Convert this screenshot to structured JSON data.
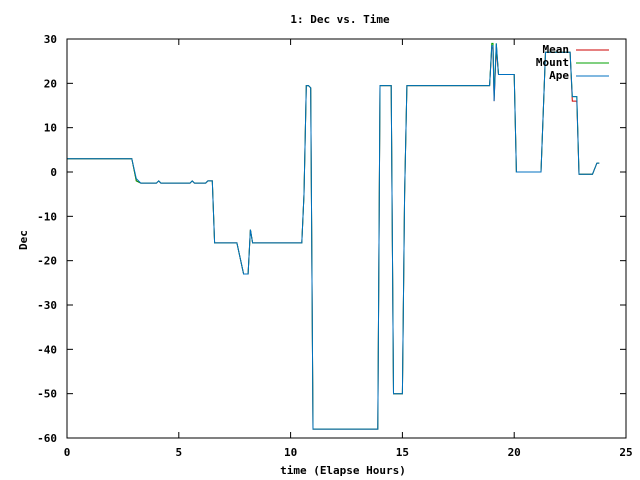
{
  "chart_data": {
    "type": "line",
    "title": "1: Dec vs. Time",
    "xlabel": "time (Elapse Hours)",
    "ylabel": "Dec",
    "xlim": [
      0,
      25
    ],
    "ylim": [
      -60,
      30
    ],
    "xticks": [
      0,
      5,
      10,
      15,
      20,
      25
    ],
    "yticks": [
      -60,
      -50,
      -40,
      -30,
      -20,
      -10,
      0,
      10,
      20,
      30
    ],
    "grid": false,
    "legend": "top-right",
    "series": [
      {
        "name": "Mean",
        "color": "#cc0000",
        "x": [
          0,
          2.6,
          2.9,
          3.1,
          3.3,
          4.0,
          4.1,
          4.2,
          5.5,
          5.6,
          5.7,
          6.2,
          6.3,
          6.4,
          6.5,
          6.6,
          7.0,
          7.6,
          7.9,
          8.1,
          8.2,
          8.3,
          8.4,
          9.0,
          10.0,
          10.5,
          10.6,
          10.7,
          10.8,
          10.9,
          11.0,
          13.2,
          13.9,
          14.0,
          14.5,
          14.6,
          14.7,
          14.8,
          15.0,
          15.1,
          15.2,
          15.3,
          16.0,
          18.0,
          18.9,
          19.0,
          19.05,
          19.1,
          19.2,
          19.3,
          19.4,
          20.0,
          20.1,
          20.2,
          21.1,
          21.2,
          21.4,
          22.0,
          22.5,
          22.6,
          22.8,
          22.9,
          23.0,
          23.5,
          23.7,
          23.8
        ],
        "y": [
          3,
          3,
          3,
          -2,
          -2.5,
          -2.5,
          -2,
          -2.5,
          -2.5,
          -2,
          -2.5,
          -2.5,
          -2,
          -2,
          -2,
          -16,
          -16,
          -16,
          -23,
          -23,
          -13,
          -16,
          -16,
          -16,
          -16,
          -16,
          -5,
          19.5,
          19.5,
          19,
          -58,
          -58,
          -58,
          19.5,
          19.5,
          -50,
          -50,
          -50,
          -50,
          -5,
          19.5,
          19.5,
          19.5,
          19.5,
          19.5,
          28,
          28,
          16,
          28,
          22,
          22,
          22,
          0,
          0,
          0,
          0,
          27,
          27,
          27,
          16,
          16,
          -0.5,
          -0.5,
          -0.5,
          2,
          2
        ]
      },
      {
        "name": "Mount",
        "color": "#00a000",
        "x": [
          0,
          2.6,
          2.9,
          3.1,
          3.3,
          4.0,
          4.1,
          4.2,
          5.5,
          5.6,
          5.7,
          6.2,
          6.3,
          6.4,
          6.5,
          6.6,
          7.0,
          7.6,
          7.9,
          8.1,
          8.2,
          8.3,
          8.4,
          9.0,
          10.0,
          10.5,
          10.6,
          10.7,
          10.8,
          10.9,
          11.0,
          13.2,
          13.9,
          14.0,
          14.5,
          14.6,
          14.7,
          14.8,
          15.0,
          15.1,
          15.2,
          15.3,
          16.0,
          18.0,
          18.9,
          19.0,
          19.05,
          19.1,
          19.2,
          19.3,
          19.4,
          20.0,
          20.1,
          20.2,
          21.1,
          21.2,
          21.4,
          22.0,
          22.5,
          22.6,
          22.8,
          22.9,
          23.0,
          23.5,
          23.7,
          23.8
        ],
        "y": [
          3,
          3,
          3,
          -2,
          -2.5,
          -2.5,
          -2,
          -2.5,
          -2.5,
          -2,
          -2.5,
          -2.5,
          -2,
          -2,
          -2,
          -16,
          -16,
          -16,
          -23,
          -23,
          -13,
          -16,
          -16,
          -16,
          -16,
          -16,
          -5,
          19.5,
          19.5,
          19,
          -58,
          -58,
          -58,
          19.5,
          19.5,
          -50,
          -50,
          -50,
          -50,
          -5,
          19.5,
          19.5,
          19.5,
          19.5,
          19.5,
          29,
          29,
          17,
          29,
          22,
          22,
          22,
          0,
          0,
          0,
          0,
          27,
          27,
          27,
          17,
          17,
          -0.5,
          -0.5,
          -0.5,
          2,
          2
        ]
      },
      {
        "name": "Ape",
        "color": "#0070c0",
        "x": [
          0,
          2.6,
          2.9,
          3.1,
          3.3,
          4.0,
          4.1,
          4.2,
          5.5,
          5.6,
          5.7,
          6.2,
          6.3,
          6.4,
          6.5,
          6.6,
          7.0,
          7.6,
          7.9,
          8.1,
          8.2,
          8.3,
          8.4,
          9.0,
          10.0,
          10.5,
          10.6,
          10.7,
          10.8,
          10.9,
          11.0,
          13.2,
          13.9,
          14.0,
          14.5,
          14.6,
          14.7,
          14.8,
          15.0,
          15.1,
          15.2,
          15.3,
          16.0,
          18.0,
          18.9,
          19.0,
          19.05,
          19.1,
          19.2,
          19.3,
          19.4,
          20.0,
          20.1,
          20.2,
          21.1,
          21.2,
          21.4,
          22.0,
          22.5,
          22.6,
          22.8,
          22.9,
          23.0,
          23.5,
          23.7,
          23.8
        ],
        "y": [
          3,
          3,
          3,
          -1.5,
          -2.5,
          -2.5,
          -2,
          -2.5,
          -2.5,
          -2,
          -2.5,
          -2.5,
          -2,
          -2,
          -2,
          -16,
          -16,
          -16,
          -23,
          -23,
          -13,
          -16,
          -16,
          -16,
          -16,
          -16,
          -5,
          19.5,
          19.5,
          19,
          -58,
          -58,
          -58,
          19.5,
          19.5,
          -50,
          -50,
          -50,
          -50,
          -5,
          19.5,
          19.5,
          19.5,
          19.5,
          19.5,
          28.5,
          28.5,
          16,
          29,
          22,
          22,
          22,
          0,
          0,
          0,
          0,
          27,
          27,
          27,
          17,
          17,
          -0.5,
          -0.5,
          -0.5,
          2,
          2
        ]
      }
    ]
  }
}
